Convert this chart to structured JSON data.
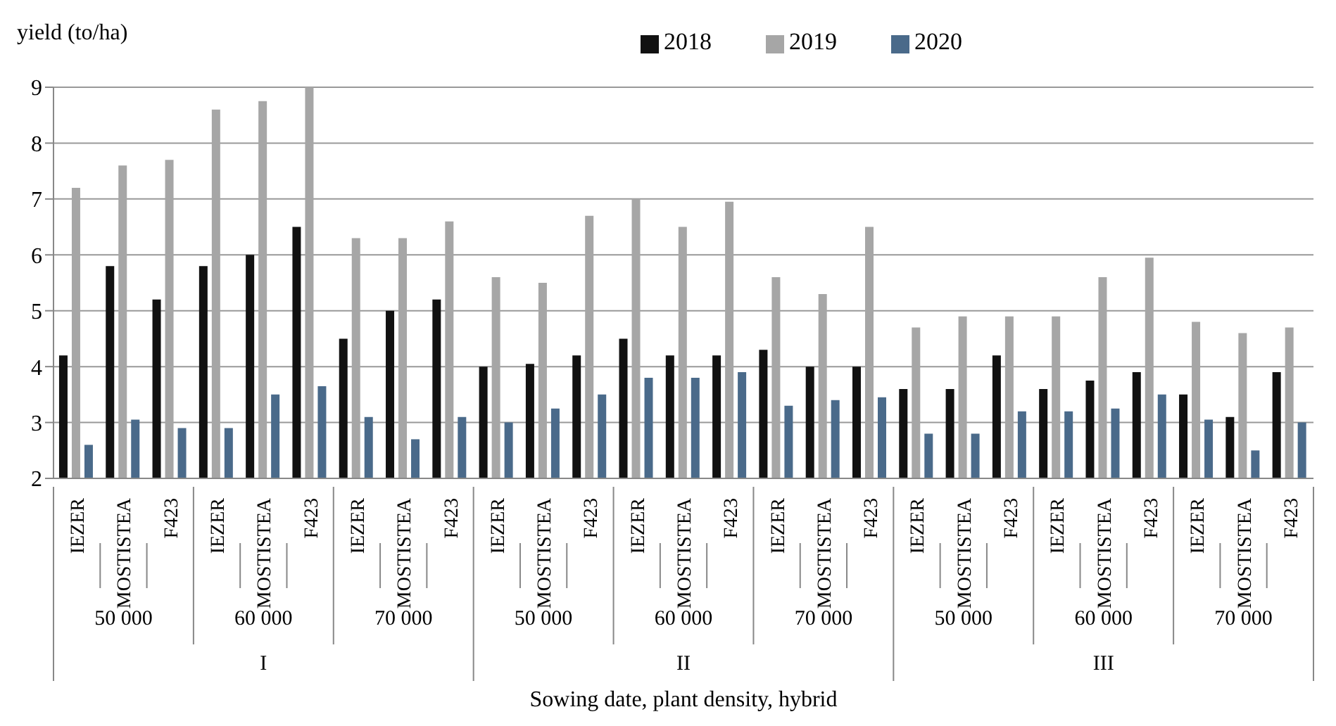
{
  "chart_data": {
    "type": "bar",
    "xlabel": "Sowing date, plant density, hybrid",
    "ylabel": "yield (to/ha)",
    "categories": [
      "IEZER",
      "MOSTISTEA",
      "F423",
      "IEZER",
      "MOSTISTEA",
      "F423",
      "IEZER",
      "MOSTISTEA",
      "F423",
      "IEZER",
      "MOSTISTEA",
      "F423",
      "IEZER",
      "MOSTISTEA",
      "F423",
      "IEZER",
      "MOSTISTEA",
      "F423",
      "IEZER",
      "MOSTISTEA",
      "F423",
      "IEZER",
      "MOSTISTEA",
      "F423",
      "IEZER",
      "MOSTISTEA",
      "F423"
    ],
    "series": [
      {
        "name": "2018",
        "color": "#111111",
        "values": [
          4.2,
          5.8,
          5.2,
          5.8,
          6.0,
          6.5,
          4.5,
          5.0,
          5.2,
          4.0,
          4.05,
          4.2,
          4.5,
          4.2,
          4.2,
          4.3,
          4.0,
          4.0,
          3.6,
          3.6,
          4.2,
          3.6,
          3.75,
          3.9,
          3.5,
          3.1,
          3.9
        ]
      },
      {
        "name": "2019",
        "color": "#a6a6a6",
        "values": [
          7.2,
          7.6,
          7.7,
          8.6,
          8.75,
          9.0,
          6.3,
          6.3,
          6.6,
          5.6,
          5.5,
          6.7,
          7.0,
          6.5,
          6.95,
          5.6,
          5.3,
          6.5,
          4.7,
          4.9,
          4.9,
          4.9,
          5.6,
          5.95,
          4.8,
          4.6,
          4.7
        ]
      },
      {
        "name": "2020",
        "color": "#4a6a8a",
        "values": [
          2.6,
          3.05,
          2.9,
          2.9,
          3.5,
          3.65,
          3.1,
          2.7,
          3.1,
          3.0,
          3.25,
          3.5,
          3.8,
          3.8,
          3.9,
          3.3,
          3.4,
          3.45,
          2.8,
          2.8,
          3.2,
          3.2,
          3.25,
          3.5,
          3.05,
          2.5,
          3.0
        ]
      }
    ],
    "annotations": [
      "50 000",
      "60 000",
      "70 000",
      "50 000",
      "60 000",
      "70 000",
      "50 000",
      "60 000",
      "70 000",
      "I",
      "II",
      "III"
    ],
    "ylim": [
      2,
      9
    ],
    "yticks": [
      2,
      3,
      4,
      5,
      6,
      7,
      8,
      9
    ],
    "grid": "y",
    "legend": "top"
  }
}
